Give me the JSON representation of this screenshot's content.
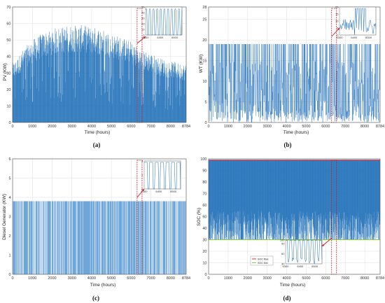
{
  "chart_data": [
    {
      "id": "a",
      "type": "area",
      "caption": "(a)",
      "xlabel": "Time (hours)",
      "ylabel": "PV (KW)",
      "xlim": [
        0,
        8784
      ],
      "ylim": [
        0,
        70
      ],
      "xticks": [
        "0",
        "1000",
        "2000",
        "3000",
        "4000",
        "5000",
        "6000",
        "7000",
        "8000",
        "8784"
      ],
      "yticks": [
        "0",
        "10",
        "20",
        "30",
        "40",
        "50",
        "60",
        "70"
      ],
      "series_color": "#1f6fb8",
      "envelope": [
        [
          0,
          36
        ],
        [
          200,
          38
        ],
        [
          500,
          44
        ],
        [
          1000,
          50
        ],
        [
          1500,
          54
        ],
        [
          2000,
          57
        ],
        [
          2500,
          58
        ],
        [
          3000,
          59
        ],
        [
          3500,
          59
        ],
        [
          4000,
          58
        ],
        [
          4500,
          57
        ],
        [
          5000,
          54
        ],
        [
          5500,
          52
        ],
        [
          6000,
          49
        ],
        [
          6500,
          44
        ],
        [
          7000,
          42
        ],
        [
          7500,
          39
        ],
        [
          8000,
          37
        ],
        [
          8500,
          36
        ],
        [
          8784,
          35
        ]
      ],
      "highlight_x": [
        6300,
        6550
      ],
      "inset": {
        "xticks": [
          "6300",
          "6400",
          "6500"
        ],
        "yticks": [
          "0",
          "10",
          "20",
          "30",
          "40",
          "50"
        ],
        "xlim": [
          6300,
          6550
        ],
        "ylim": [
          0,
          50
        ],
        "peak": 47
      }
    },
    {
      "id": "b",
      "type": "line",
      "caption": "(b)",
      "xlabel": "Time (hours)",
      "ylabel": "WT (KW)",
      "xlim": [
        0,
        8784
      ],
      "ylim": [
        0,
        28
      ],
      "xticks": [
        "0",
        "1000",
        "2000",
        "3000",
        "4000",
        "5000",
        "6000",
        "7000",
        "8000",
        "8784"
      ],
      "yticks": [
        "0",
        "5",
        "10",
        "15",
        "20",
        "25",
        "28"
      ],
      "series_color": "#1f6fb8",
      "max_value": 19,
      "highlight_x": [
        6300,
        6550
      ],
      "inset": {
        "xticks": [
          "6300",
          "6400",
          "6500"
        ],
        "yticks": [
          "0",
          "5",
          "10",
          "15",
          "20"
        ],
        "xlim": [
          6300,
          6550
        ],
        "ylim": [
          0,
          20
        ],
        "peak": 19
      }
    },
    {
      "id": "c",
      "type": "line",
      "caption": "(c)",
      "xlabel": "Time (hours)",
      "ylabel": "Diesel Generator (KW)",
      "xlim": [
        0,
        8784
      ],
      "ylim": [
        0,
        6
      ],
      "xticks": [
        "0",
        "1000",
        "2000",
        "3000",
        "4000",
        "5000",
        "6000",
        "7000",
        "8000",
        "8784"
      ],
      "yticks": [
        "0",
        "1",
        "2",
        "3",
        "4",
        "5",
        "6"
      ],
      "series_color": "#6ea6d8",
      "on_value": 3.8,
      "highlight_x": [
        6300,
        6550
      ],
      "inset": {
        "xticks": [
          "6300",
          "6400",
          "6500"
        ],
        "yticks": [
          "0",
          "2",
          "4"
        ],
        "xlim": [
          6300,
          6550
        ],
        "ylim": [
          0,
          4
        ],
        "peak": 3.8
      }
    },
    {
      "id": "d",
      "type": "line",
      "caption": "(d)",
      "xlabel": "Time (hours)",
      "ylabel": "SOC (%)",
      "xlim": [
        0,
        8784
      ],
      "ylim": [
        0,
        100
      ],
      "xticks": [
        "0",
        "1000",
        "2000",
        "3000",
        "4000",
        "5000",
        "6000",
        "7000",
        "8000",
        "8784"
      ],
      "yticks": [
        "0",
        "10",
        "20",
        "30",
        "40",
        "50",
        "60",
        "70",
        "80",
        "90",
        "100"
      ],
      "series_color": "#1f6fb8",
      "soc_max": 99,
      "soc_min": 30,
      "soc_max_color": "#e0303a",
      "soc_min_color": "#7cd63a",
      "legend": [
        "SOC Max",
        "SOC Min"
      ],
      "highlight_x": [
        6300,
        6550
      ],
      "inset": {
        "xticks": [
          "6300",
          "6400",
          "6500"
        ],
        "yticks": [
          "30",
          "60",
          "90",
          "100"
        ],
        "xlim": [
          6300,
          6550
        ],
        "ylim": [
          30,
          100
        ],
        "peak": 99
      }
    }
  ]
}
